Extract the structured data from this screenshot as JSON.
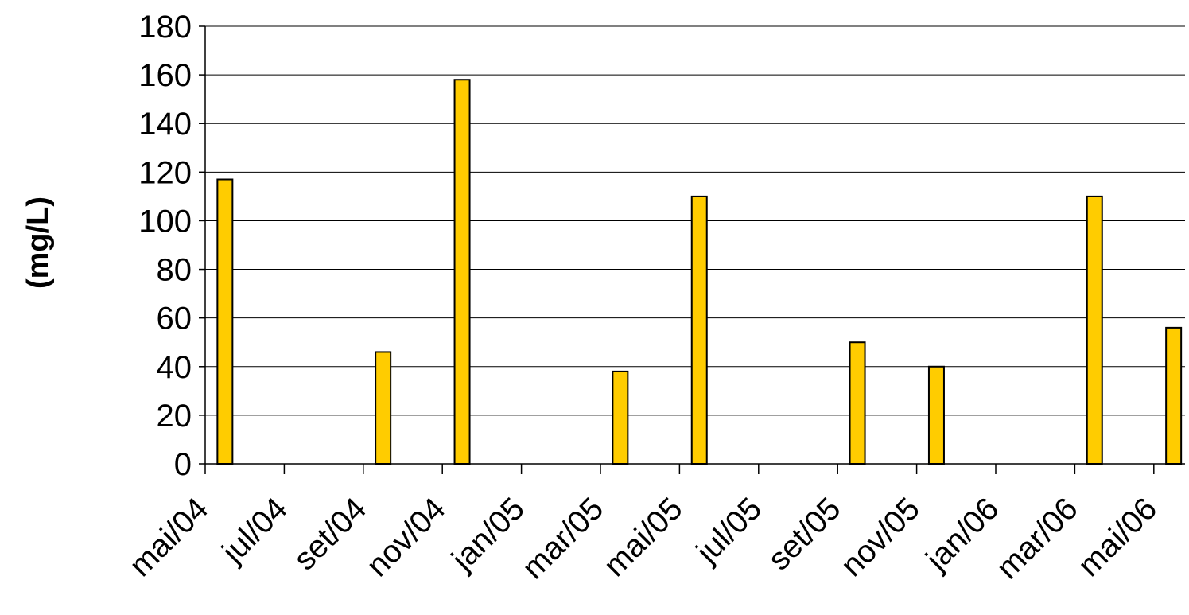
{
  "chart_data": {
    "type": "bar",
    "title": "",
    "xlabel": "",
    "ylabel": "(mg/L)",
    "ylim": [
      0,
      180
    ],
    "yticks": [
      0,
      20,
      40,
      60,
      80,
      100,
      120,
      140,
      160,
      180
    ],
    "xtick_labels": [
      "mai/04",
      "jul/04",
      "set/04",
      "nov/04",
      "jan/05",
      "mar/05",
      "mai/05",
      "jul/05",
      "set/05",
      "nov/05",
      "jan/06",
      "mar/06",
      "mai/06"
    ],
    "categories": [
      "mai/04",
      "set/04",
      "nov/04",
      "mar/05",
      "mai/05",
      "set/05",
      "nov/05",
      "mar/06",
      "mai/06"
    ],
    "x_dates": [
      "2004-05",
      "2004-09",
      "2004-11",
      "2005-03",
      "2005-05",
      "2005-09",
      "2005-11",
      "2006-03",
      "2006-05"
    ],
    "values": [
      117,
      46,
      158,
      38,
      110,
      50,
      40,
      110,
      56
    ],
    "grid": true,
    "legend": "none",
    "bar_color": "#FFCC00",
    "bar_edge_color": "#000000"
  }
}
